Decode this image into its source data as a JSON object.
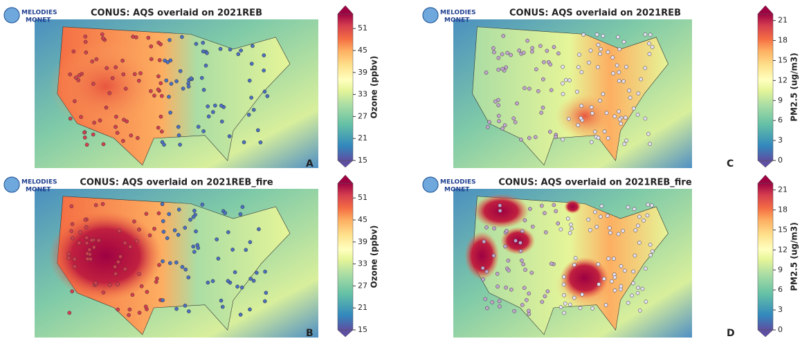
{
  "logo": {
    "line1": "MELODIES",
    "line2": "MONET"
  },
  "panels": [
    {
      "letter": "A",
      "title": "CONUS: AQS overlaid on 2021REB",
      "colorbar": {
        "label": "Ozone (ppbv)",
        "lim": [
          15,
          55
        ],
        "ticks": [
          15,
          21,
          27,
          33,
          39,
          45,
          51
        ]
      }
    },
    {
      "letter": "B",
      "title": "CONUS: AQS overlaid on 2021REB_fire",
      "colorbar": {
        "label": "Ozone (ppbv)",
        "lim": [
          15,
          55
        ],
        "ticks": [
          15,
          21,
          27,
          33,
          39,
          45,
          51
        ]
      }
    },
    {
      "letter": "C",
      "title": "CONUS: AQS overlaid on 2021REB",
      "colorbar": {
        "label": "PM2.5 (ug/m3)",
        "lim": [
          0,
          22
        ],
        "ticks": [
          0,
          3,
          6,
          9,
          12,
          15,
          18,
          21
        ]
      }
    },
    {
      "letter": "D",
      "title": "CONUS: AQS overlaid on 2021REB_fire",
      "colorbar": {
        "label": "PM2.5 (ug/m3)",
        "lim": [
          0,
          22
        ],
        "ticks": [
          0,
          3,
          6,
          9,
          12,
          15,
          18,
          21
        ]
      }
    }
  ]
}
